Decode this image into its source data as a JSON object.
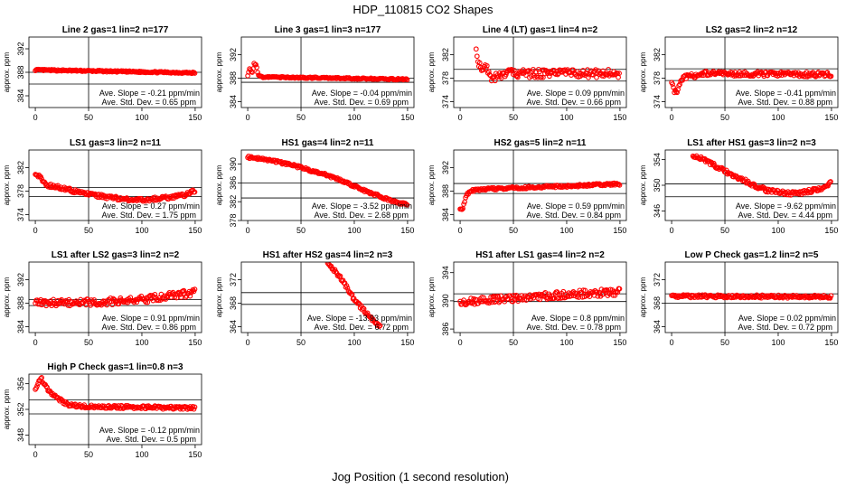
{
  "figure": {
    "title": "HDP_110815  CO2 Shapes",
    "xlabel": "Jog Position (1 second resolution)"
  },
  "chart_data": [
    {
      "type": "scatter",
      "title": "Line 2 gas=1 lin=2 n=177",
      "xlabel": "",
      "ylabel": "approx. ppm",
      "xlim": [
        -6,
        156
      ],
      "ylim": [
        382,
        394
      ],
      "xticks": [
        0,
        50,
        100,
        150
      ],
      "yticks": [
        384,
        388,
        392
      ],
      "vline": 50,
      "hlines": [
        388,
        386
      ],
      "annotation": [
        "Ave. Slope = -0.21  ppm/min",
        "Ave. Std. Dev. = 0.65  ppm"
      ],
      "series": [
        {
          "name": "CO2",
          "x": [
            0,
            150
          ],
          "y": [
            388.4,
            387.9
          ],
          "noise": 0.12
        }
      ]
    },
    {
      "type": "scatter",
      "title": "Line 3 gas=1 lin=3 n=177",
      "xlabel": "",
      "ylabel": "approx. ppm",
      "xlim": [
        -6,
        156
      ],
      "ylim": [
        383,
        395
      ],
      "xticks": [
        0,
        50,
        100,
        150
      ],
      "yticks": [
        384,
        388,
        392
      ],
      "vline": 50,
      "hlines": [
        388,
        387.3
      ],
      "annotation": [
        "Ave. Slope = -0.04  ppm/min",
        "Ave. Std. Dev. = 0.69  ppm"
      ],
      "series": [
        {
          "name": "CO2",
          "x": [
            0,
            2,
            4,
            6,
            8,
            10,
            14,
            150
          ],
          "y": [
            388.5,
            389.8,
            388.7,
            390.5,
            390.1,
            388.6,
            388.2,
            387.8
          ],
          "noise": 0.12
        }
      ]
    },
    {
      "type": "scatter",
      "title": "Line 4 (LT) gas=1 lin=4 n=2",
      "xlabel": "",
      "ylabel": "approx. ppm",
      "xlim": [
        -6,
        156
      ],
      "ylim": [
        373,
        385
      ],
      "xticks": [
        0,
        50,
        100,
        150
      ],
      "yticks": [
        374,
        378,
        382
      ],
      "vline": 50,
      "hlines": [
        379.5,
        377.5
      ],
      "annotation": [
        "Ave. Slope = 0.09  ppm/min",
        "Ave. Std. Dev. = 0.66  ppm"
      ],
      "series": [
        {
          "name": "CO2",
          "x": [
            15,
            17,
            20,
            25,
            30,
            40,
            150
          ],
          "y": [
            383.5,
            381,
            379,
            380,
            378,
            378.8,
            378.8
          ],
          "noise": 0.7
        }
      ]
    },
    {
      "type": "scatter",
      "title": "LS2 gas=2 lin=2 n=12",
      "xlabel": "",
      "ylabel": "approx. ppm",
      "xlim": [
        -6,
        156
      ],
      "ylim": [
        373,
        385
      ],
      "xticks": [
        0,
        50,
        100,
        150
      ],
      "yticks": [
        374,
        378,
        382
      ],
      "vline": 50,
      "hlines": [
        379.6,
        377.6
      ],
      "annotation": [
        "Ave. Slope = -0.41  ppm/min",
        "Ave. Std. Dev. = 0.88  ppm"
      ],
      "series": [
        {
          "name": "CO2",
          "x": [
            0,
            2,
            4,
            6,
            10,
            30,
            150
          ],
          "y": [
            377.5,
            376,
            375.5,
            376,
            378,
            378.8,
            378.6
          ],
          "noise": 0.4
        }
      ]
    },
    {
      "type": "scatter",
      "title": "LS1 gas=3 lin=2 n=11",
      "xlabel": "",
      "ylabel": "approx. ppm",
      "xlim": [
        -6,
        156
      ],
      "ylim": [
        373,
        385
      ],
      "xticks": [
        0,
        50,
        100,
        150
      ],
      "yticks": [
        374,
        378,
        382
      ],
      "vline": 50,
      "hlines": [
        378.6,
        377.1
      ],
      "annotation": [
        "Ave. Slope = 0.27  ppm/min",
        "Ave. Std. Dev. = 1.75  ppm"
      ],
      "series": [
        {
          "name": "CO2",
          "x": [
            0,
            5,
            10,
            20,
            40,
            60,
            80,
            100,
            120,
            140,
            150
          ],
          "y": [
            381,
            380.3,
            379,
            378.8,
            377.8,
            377.2,
            376.7,
            376.5,
            376.8,
            377.3,
            378.1
          ],
          "noise": 0.3
        }
      ]
    },
    {
      "type": "scatter",
      "title": "HS1 gas=4 lin=2 n=11",
      "xlabel": "",
      "ylabel": "approx. ppm",
      "xlim": [
        -6,
        156
      ],
      "ylim": [
        378,
        393
      ],
      "xticks": [
        0,
        50,
        100,
        150
      ],
      "yticks": [
        378,
        382,
        386,
        390
      ],
      "vline": 50,
      "hlines": [
        386,
        382.8
      ],
      "annotation": [
        "Ave. Slope = -3.52  ppm/min",
        "Ave. Std. Dev. = 2.68  ppm"
      ],
      "series": [
        {
          "name": "CO2",
          "x": [
            0,
            10,
            30,
            50,
            60,
            70,
            80,
            90,
            100,
            110,
            120,
            130,
            140,
            150
          ],
          "y": [
            391.5,
            391.2,
            390.4,
            389.3,
            388.6,
            388,
            387.2,
            386.3,
            385.3,
            384.3,
            383.5,
            382.6,
            381.8,
            381.5
          ],
          "noise": 0.25
        }
      ]
    },
    {
      "type": "scatter",
      "title": "HS2 gas=5 lin=2 n=11",
      "xlabel": "",
      "ylabel": "approx. ppm",
      "xlim": [
        -6,
        156
      ],
      "ylim": [
        383,
        395
      ],
      "xticks": [
        0,
        50,
        100,
        150
      ],
      "yticks": [
        384,
        388,
        392
      ],
      "vline": 50,
      "hlines": [
        389.3,
        387.6
      ],
      "annotation": [
        "Ave. Slope = 0.59  ppm/min",
        "Ave. Std. Dev. = 0.84  ppm"
      ],
      "series": [
        {
          "name": "CO2",
          "x": [
            0,
            2,
            4,
            6,
            10,
            30,
            150
          ],
          "y": [
            385,
            384.8,
            386,
            387.3,
            388.1,
            388.4,
            389.2
          ],
          "noise": 0.2
        }
      ]
    },
    {
      "type": "scatter",
      "title": "LS1 after HS1 gas=3 lin=2 n=3",
      "xlabel": "",
      "ylabel": "approx. ppm",
      "xlim": [
        -6,
        156
      ],
      "ylim": [
        344.5,
        355.5
      ],
      "xticks": [
        0,
        50,
        100,
        150
      ],
      "yticks": [
        346,
        350,
        354
      ],
      "vline": 50,
      "hlines": [
        350.2,
        348.2
      ],
      "annotation": [
        "Ave. Slope = -9.62  ppm/min",
        "Ave. Std. Dev. = 4.44  ppm"
      ],
      "series": [
        {
          "name": "CO2",
          "x": [
            20,
            30,
            40,
            50,
            60,
            70,
            80,
            90,
            100,
            110,
            120,
            130,
            140,
            150
          ],
          "y": [
            354.6,
            354,
            353.1,
            352.2,
            351.4,
            350.6,
            349.8,
            349.2,
            348.9,
            348.7,
            348.8,
            349.1,
            349.5,
            350.4
          ],
          "noise": 0.3
        }
      ]
    },
    {
      "type": "scatter",
      "title": "LS1 after LS2 gas=3 lin=2 n=2",
      "xlabel": "",
      "ylabel": "approx. ppm",
      "xlim": [
        -6,
        156
      ],
      "ylim": [
        383,
        395
      ],
      "xticks": [
        0,
        50,
        100,
        150
      ],
      "yticks": [
        384,
        388,
        392
      ],
      "vline": 50,
      "hlines": [
        388.6,
        387.6
      ],
      "annotation": [
        "Ave. Slope = 0.91  ppm/min",
        "Ave. Std. Dev. = 0.86  ppm"
      ],
      "series": [
        {
          "name": "CO2",
          "x": [
            0,
            50,
            100,
            150
          ],
          "y": [
            388,
            388.1,
            388.6,
            389.8
          ],
          "noise": 0.6
        }
      ]
    },
    {
      "type": "scatter",
      "title": "HS1 after HS2 gas=4 lin=2 n=3",
      "xlabel": "",
      "ylabel": "approx. ppm",
      "xlim": [
        -6,
        156
      ],
      "ylim": [
        363,
        375
      ],
      "xticks": [
        0,
        50,
        100,
        150
      ],
      "yticks": [
        364,
        368,
        372
      ],
      "vline": 50,
      "hlines": [
        369.8,
        367.8
      ],
      "annotation": [
        "Ave. Slope = -13.93  ppm/min",
        "Ave. Std. Dev. = 6.72  ppm"
      ],
      "series": [
        {
          "name": "CO2",
          "x": [
            75,
            80,
            85,
            90,
            95,
            100,
            105,
            110,
            115,
            120,
            125
          ],
          "y": [
            374.8,
            373.8,
            372.8,
            371.6,
            370.1,
            368.6,
            367.6,
            366.6,
            365.6,
            364.6,
            363.8
          ],
          "noise": 0.3
        }
      ]
    },
    {
      "type": "scatter",
      "title": "HS1 after LS1 gas=4 lin=2 n=2",
      "xlabel": "",
      "ylabel": "approx. ppm",
      "xlim": [
        -6,
        156
      ],
      "ylim": [
        385.5,
        395.5
      ],
      "xticks": [
        0,
        50,
        100,
        150
      ],
      "yticks": [
        386,
        390,
        394
      ],
      "vline": 50,
      "hlines": [
        391,
        389.9
      ],
      "annotation": [
        "Ave. Slope = 0.8  ppm/min",
        "Ave. Std. Dev. = 0.78  ppm"
      ],
      "series": [
        {
          "name": "CO2",
          "x": [
            0,
            50,
            100,
            150
          ],
          "y": [
            389.8,
            390.4,
            390.9,
            391.3
          ],
          "noise": 0.5
        }
      ]
    },
    {
      "type": "scatter",
      "title": "Low P Check gas=1.2 lin=2 n=5",
      "xlabel": "",
      "ylabel": "approx. ppm",
      "xlim": [
        -6,
        156
      ],
      "ylim": [
        363,
        375
      ],
      "xticks": [
        0,
        50,
        100,
        150
      ],
      "yticks": [
        364,
        368,
        372
      ],
      "vline": 50,
      "hlines": [
        369.6,
        368
      ],
      "annotation": [
        "Ave. Slope = 0.02  ppm/min",
        "Ave. Std. Dev. = 0.72  ppm"
      ],
      "series": [
        {
          "name": "CO2",
          "x": [
            0,
            150
          ],
          "y": [
            369.2,
            369.1
          ],
          "noise": 0.25
        }
      ]
    },
    {
      "type": "scatter",
      "title": "High P Check gas=1 lin=0.8 n=3",
      "xlabel": "",
      "ylabel": "approx. ppm",
      "xlim": [
        -6,
        156
      ],
      "ylim": [
        346.5,
        357.5
      ],
      "xticks": [
        0,
        50,
        100,
        150
      ],
      "yticks": [
        348,
        352,
        356
      ],
      "vline": 50,
      "hlines": [
        353.5,
        351.3
      ],
      "annotation": [
        "Ave. Slope = -0.12  ppm/min",
        "Ave. Std. Dev. = 0.5  ppm"
      ],
      "series": [
        {
          "name": "CO2",
          "x": [
            0,
            5,
            10,
            15,
            20,
            30,
            40,
            150
          ],
          "y": [
            355,
            357,
            355.5,
            354.5,
            353.8,
            352.8,
            352.5,
            352.2
          ],
          "noise": 0.25
        }
      ]
    }
  ]
}
